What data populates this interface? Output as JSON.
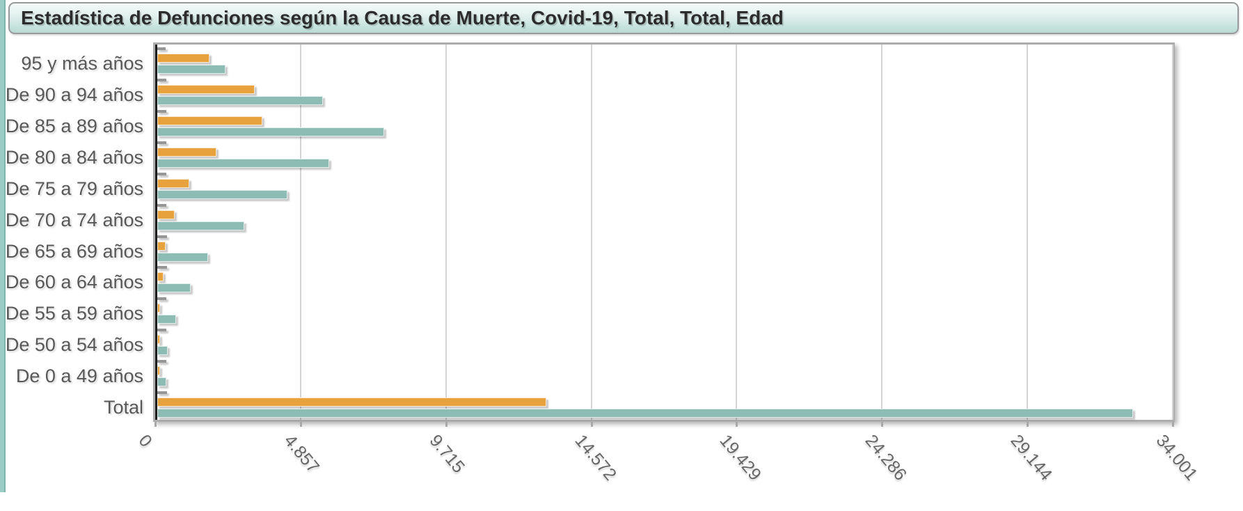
{
  "header": {
    "title": "Estadística de Defunciones según la Causa de Muerte, Covid-19, Total, Total, Edad"
  },
  "chart_data": {
    "type": "bar",
    "orientation": "horizontal",
    "title": "Estadística de Defunciones según la Causa de Muerte, Covid-19, Total, Total, Edad",
    "categories": [
      "95 y más años",
      "De 90 a 94 años",
      "De 85 a 89 años",
      "De 80 a 84 años",
      "De 75 a 79 años",
      "De 70 a 74 años",
      "De 65 a 69 años",
      "De 60 a 64 años",
      "De 55 a 59 años",
      "De 50 a 54 años",
      "De 0 a 49 años",
      "Total"
    ],
    "series": [
      {
        "name": "gray",
        "color": "#969696",
        "values": [
          270,
          300,
          300,
          295,
          300,
          300,
          315,
          315,
          305,
          305,
          295,
          320
        ]
      },
      {
        "name": "orange",
        "color": "#e8a23d",
        "values": [
          1750,
          3260,
          3510,
          1990,
          1080,
          590,
          280,
          210,
          95,
          100,
          85,
          13030
        ]
      },
      {
        "name": "teal",
        "color": "#8cbcb4",
        "values": [
          2280,
          5540,
          7600,
          5760,
          4350,
          2910,
          1710,
          1120,
          640,
          340,
          310,
          32670
        ]
      }
    ],
    "x_axis": {
      "min": 0,
      "max": 34001,
      "tick_values": [
        0,
        4857,
        9715,
        14572,
        19429,
        24286,
        29144,
        34001
      ],
      "tick_labels": [
        "0",
        "4.857",
        "9.715",
        "14.572",
        "19.429",
        "24.286",
        "29.144",
        "34.001"
      ]
    },
    "grid": "vertical",
    "legend": "none"
  },
  "colors": {
    "left_strip": "#9ccdc5",
    "header_border": "#97999b",
    "header_gradient_bottom": "#b8dbd4",
    "plot_border": "#adadad",
    "grid_line": "#d4d4d4",
    "axis_line": "#1c1c1c",
    "category_text": "#585858",
    "tick_text": "#666666",
    "title_text": "#2c2c2c"
  }
}
